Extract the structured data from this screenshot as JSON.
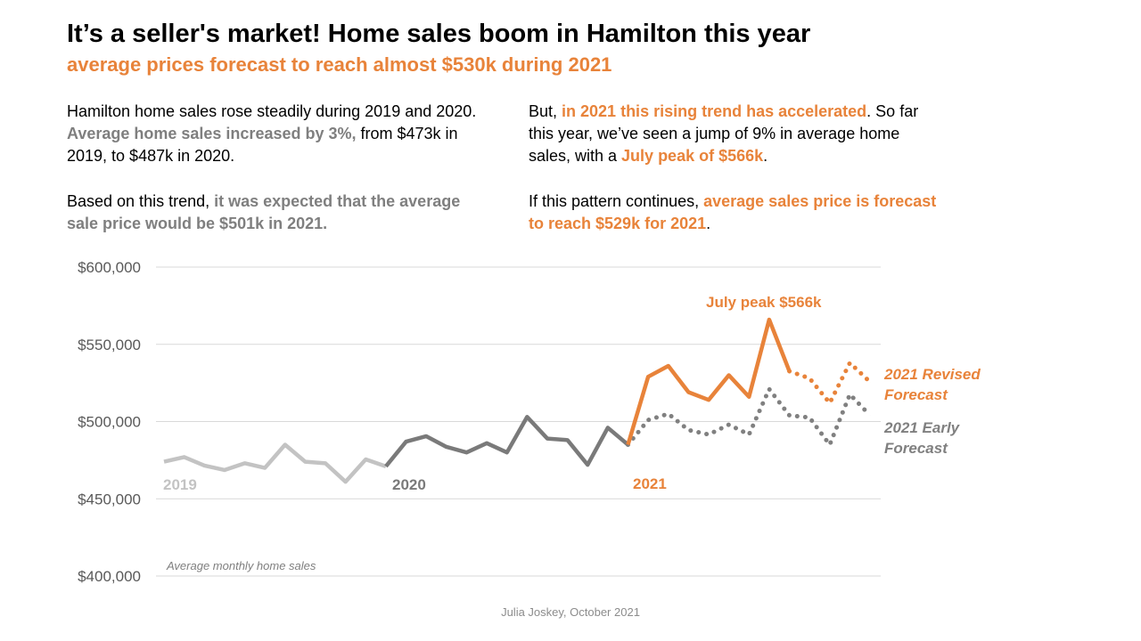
{
  "title": "It’s a seller's market! Home sales boom in Hamilton this year",
  "subtitle": "average prices forecast to reach almost $530k during 2021",
  "paragraphs": [
    [
      {
        "text": "Hamilton home sales rose steadily during 2019 and 2020. ",
        "style": "plain"
      },
      {
        "text": "Average home sales increased by 3%,",
        "style": "grey"
      },
      {
        "text": " from $473k in 2019, to $487k in 2020.",
        "style": "plain"
      }
    ],
    [
      {
        "text": "Based on this trend, ",
        "style": "plain"
      },
      {
        "text": "it was expected that the average sale price would be $501k in 2021.",
        "style": "grey"
      }
    ],
    [
      {
        "text": "But, ",
        "style": "plain"
      },
      {
        "text": "in 2021 this rising trend has accelerated",
        "style": "orange"
      },
      {
        "text": ". So far this year, we’ve seen a jump of 9% in average home sales, with a ",
        "style": "plain"
      },
      {
        "text": "July peak of $566k",
        "style": "orange"
      },
      {
        "text": ".",
        "style": "plain"
      }
    ],
    [
      {
        "text": "If this pattern continues, ",
        "style": "plain"
      },
      {
        "text": "average sales price is forecast to reach $529k for 2021",
        "style": "orange"
      },
      {
        "text": ".",
        "style": "plain"
      }
    ]
  ],
  "footer": "Julia Joskey, October 2021",
  "colors": {
    "orange": "#E8833A",
    "grey_2019": "#C3C3C3",
    "grey_2020": "#7A7A7A",
    "early_forecast": "#808080",
    "gridline": "#D9D9D9",
    "axis_text": "#595959"
  },
  "chart_data": {
    "type": "line",
    "title": "",
    "note": "Average monthly home sales",
    "ylim": [
      400000,
      600000
    ],
    "yticks": [
      400000,
      450000,
      500000,
      550000,
      600000
    ],
    "ytick_labels": [
      "$400,000",
      "$450,000",
      "$500,000",
      "$550,000",
      "$600,000"
    ],
    "grid": true,
    "x_unit": "month",
    "year_labels": [
      "2019",
      "2020",
      "2021"
    ],
    "series": [
      {
        "key": "y2019",
        "start": "2019-01",
        "style": "solid",
        "values": [
          474000,
          477000,
          471500,
          468600,
          473000,
          470000,
          485000,
          474000,
          473000,
          461000,
          475500,
          471000
        ]
      },
      {
        "key": "y2020",
        "start": "2019-12",
        "style": "solid",
        "values": [
          471000,
          487000,
          490500,
          483600,
          480000,
          486000,
          480000,
          503000,
          489000,
          488000,
          472000,
          496000,
          485000
        ]
      },
      {
        "key": "y2021",
        "start": "2020-12",
        "style": "solid",
        "values": [
          485000,
          529000,
          536000,
          519000,
          514000,
          530000,
          516000,
          566000,
          532600
        ]
      },
      {
        "key": "revised",
        "name": "2021 Revised Forecast",
        "start": "2021-08",
        "style": "dotted",
        "values": [
          532600,
          528000,
          512000,
          538000,
          525600
        ]
      },
      {
        "key": "early",
        "name": "2021 Early Forecast",
        "start": "2020-12",
        "style": "dotted",
        "values": [
          485000,
          501000,
          505000,
          494500,
          491600,
          498000,
          491600,
          521000,
          504000,
          502600,
          485000,
          517600,
          504000
        ]
      }
    ],
    "annotations": [
      {
        "text": "July peak $566k",
        "x": "2021-07",
        "y": 566000
      }
    ]
  }
}
